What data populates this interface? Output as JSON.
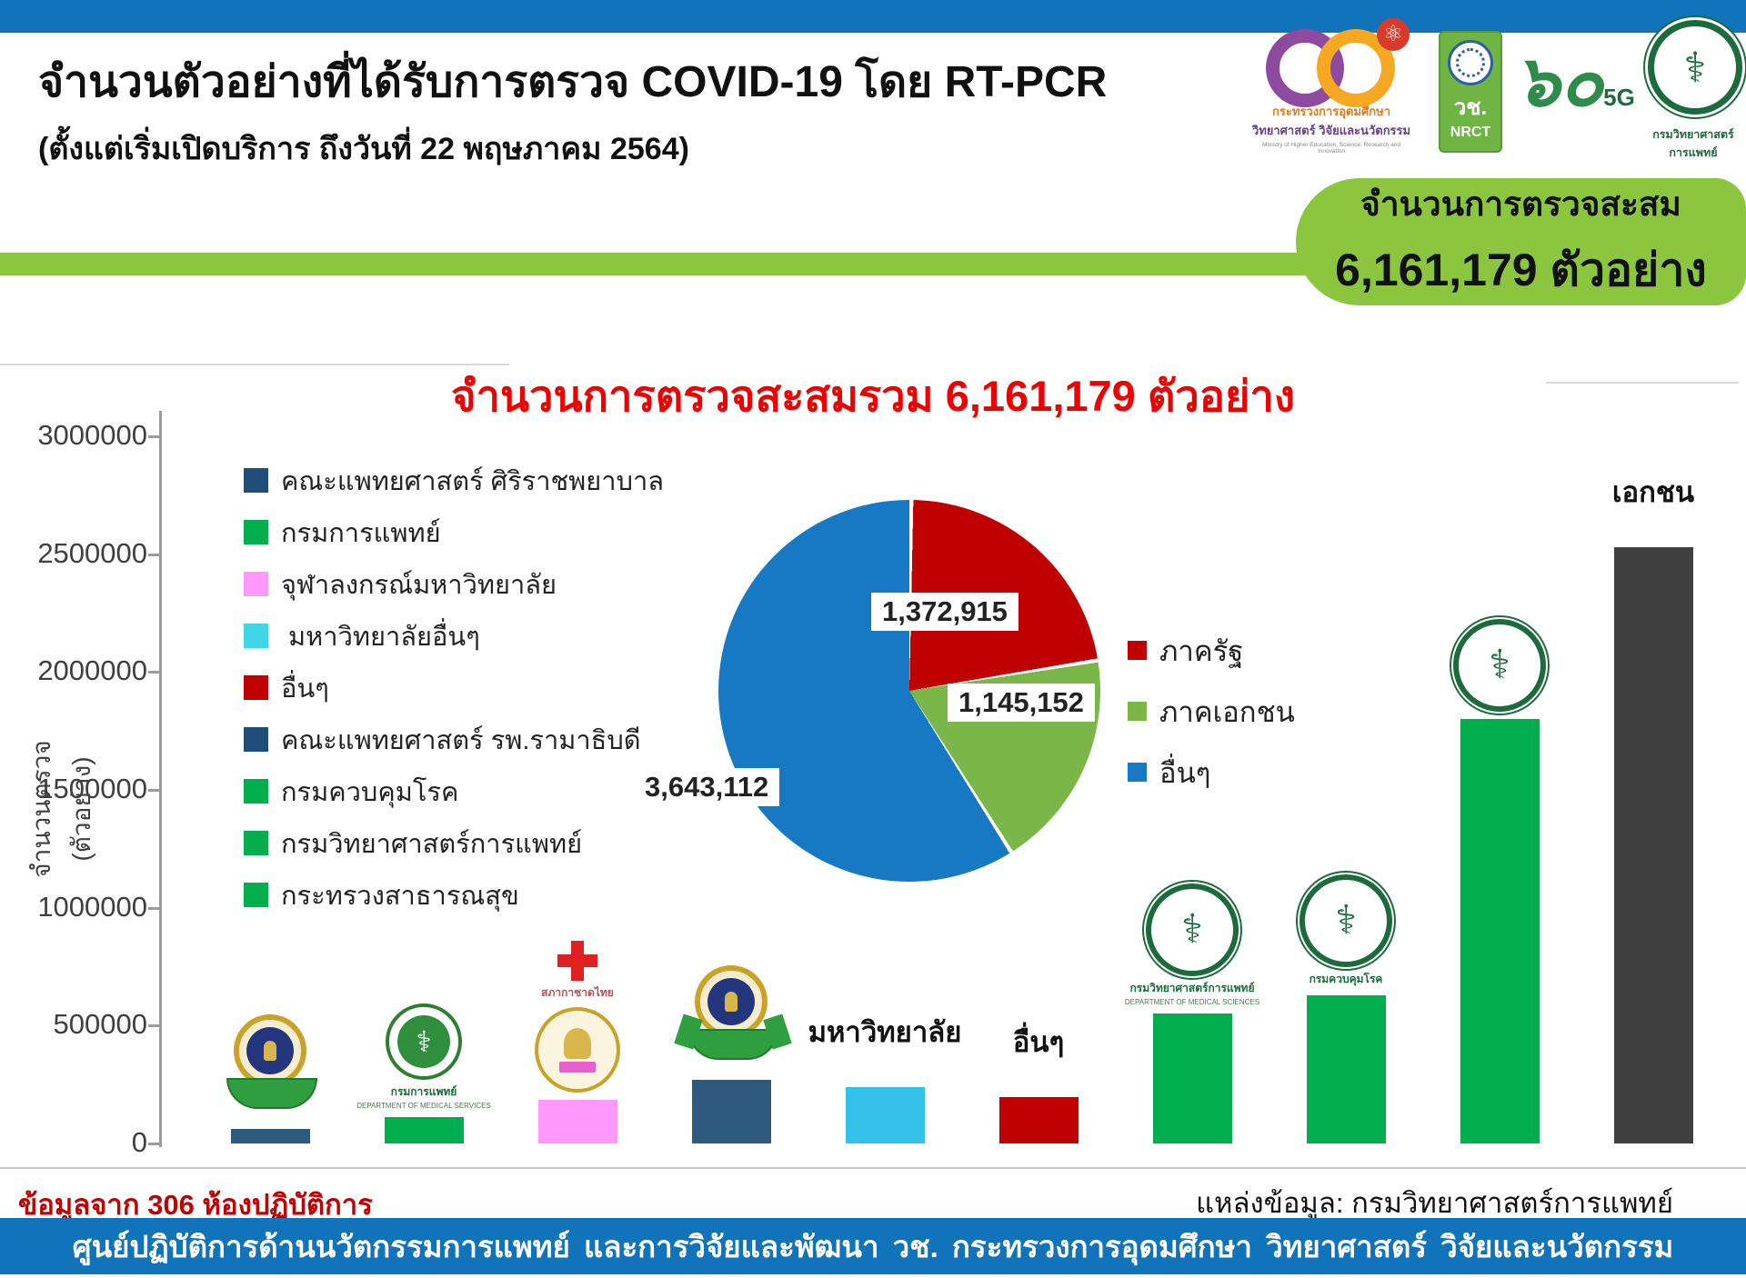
{
  "header": {
    "title": "จำนวนตัวอย่างที่ได้รับการตรวจ COVID-19 โดย RT-PCR",
    "subtitle": "(ตั้งแต่เริ่มเปิดบริการ ถึงวันที่ 22 พฤษภาคม 2564)",
    "logos": {
      "mhesi_line1": "กระทรวงการอุดมศึกษา",
      "mhesi_line2": "วิทยาศาสตร์ วิจัยและนวัตกรรม",
      "mhesi_line3": "Ministry of Higher Education, Science, Research and Innovation",
      "nrct_thai": "วช.",
      "nrct_en": "NRCT",
      "dms60_numeral": "๖๐",
      "dms60_suffix": "5G",
      "moph_caption": "กรมวิทยาศาสตร์การแพทย์"
    }
  },
  "summary_badge": {
    "label": "จำนวนการตรวจสะสม",
    "value": "6,161,179 ตัวอย่าง"
  },
  "chart_data": [
    {
      "type": "bar",
      "title": "จำนวนการตรวจสะสมรวม 6,161,179 ตัวอย่าง",
      "title_color": "#EE0000",
      "ylabel": "จำนวนตรวจ (ตัวอย่าง)",
      "ylim": [
        0,
        3000000
      ],
      "yticks": [
        0,
        500000,
        1000000,
        1500000,
        2000000,
        2500000,
        3000000
      ],
      "grid": false,
      "values_estimated_from_pixels": true,
      "legend_position": "upper-left",
      "legend": [
        {
          "label": "คณะแพทยศาสตร์ ศิริราชพยาบาล",
          "color": "#1F4E79"
        },
        {
          "label": "กรมการแพทย์",
          "color": "#00AE4E"
        },
        {
          "label": "จุฬาลงกรณ์มหาวิทยาลัย",
          "color": "#FF99FE"
        },
        {
          "label": " มหาวิทยาลัยอื่นๆ",
          "color": "#3FD6E8"
        },
        {
          "label": "อื่นๆ",
          "color": "#C00000"
        },
        {
          "label": "คณะแพทยศาสตร์ รพ.รามาธิบดี",
          "color": "#1F4E79"
        },
        {
          "label": "กรมควบคุมโรค",
          "color": "#00AE4E"
        },
        {
          "label": "กรมวิทยาศาสตร์การแพทย์",
          "color": "#00AE4E"
        },
        {
          "label": "กระทรวงสาธารณสุข",
          "color": "#00AE4E"
        }
      ],
      "bars": [
        {
          "name": "คณะแพทยศาสตร์ ศิริราชพยาบาล",
          "value": 60000,
          "color": "#2E5A7E",
          "logo": "mahidol",
          "top_text": "",
          "caption": "",
          "caption_en": ""
        },
        {
          "name": "กรมการแพทย์",
          "value": 110000,
          "color": "#00AE4E",
          "logo": "dms",
          "top_text": "",
          "caption": "กรมการแพทย์",
          "caption_en": "DEPARTMENT OF MEDICAL SERVICES"
        },
        {
          "name": "จุฬาลงกรณ์มหาวิทยาลัย",
          "value": 185000,
          "color": "#FF99FE",
          "logo": "chula",
          "top_text": "",
          "caption": "สภากาชาดไทย",
          "caption_en": ""
        },
        {
          "name": "คณะแพทยศาสตร์ รพ.รามาธิบดี",
          "value": 270000,
          "color": "#2E5A7E",
          "logo": "ramathibodi",
          "top_text": "",
          "caption": "",
          "caption_en": ""
        },
        {
          "name": "มหาวิทยาลัยอื่นๆ",
          "value": 240000,
          "color": "#33C1E8",
          "logo": "",
          "top_text": "มหาวิทยาลัย",
          "caption": "",
          "caption_en": ""
        },
        {
          "name": "อื่นๆ",
          "value": 195000,
          "color": "#C00000",
          "logo": "",
          "top_text": "อื่นๆ",
          "caption": "",
          "caption_en": ""
        },
        {
          "name": "กรมวิทยาศาสตร์การแพทย์",
          "value": 550000,
          "color": "#00AE4E",
          "logo": "moph",
          "top_text": "",
          "caption": "กรมวิทยาศาสตร์การแพทย์",
          "caption_en": "DEPARTMENT OF MEDICAL SCIENCES"
        },
        {
          "name": "กรมควบคุมโรค",
          "value": 630000,
          "color": "#00AE4E",
          "logo": "moph",
          "top_text": "",
          "caption": "กรมควบคุมโรค",
          "caption_en": ""
        },
        {
          "name": "กระทรวงสาธารณสุข",
          "value": 1800000,
          "color": "#00AE4E",
          "logo": "moph",
          "top_text": "",
          "caption": "",
          "caption_en": ""
        },
        {
          "name": "เอกชน",
          "value": 2530000,
          "color": "#3F3F3F",
          "logo": "",
          "top_text": "เอกชน",
          "caption": "",
          "caption_en": ""
        }
      ]
    },
    {
      "type": "pie",
      "total_label": "จำนวนการตรวจสะสมรวม 6,161,179 ตัวอย่าง",
      "total": 6161179,
      "labels": [
        "ภาครัฐ",
        "ภาคเอกชน",
        "อื่นๆ"
      ],
      "values": [
        1372915,
        1145152,
        3643112
      ],
      "data_labels": [
        "1,372,915",
        "1,145,152",
        "3,643,112"
      ],
      "colors": [
        "#C00000",
        "#7AB648",
        "#1779C4"
      ],
      "start_angle_deg": 0,
      "direction": "clockwise",
      "legend_position": "right"
    }
  ],
  "footer": {
    "left_text": "ข้อมูลจาก 306 ห้องปฏิบัติการ",
    "right_text": "แหล่งข้อมูล: กรมวิทยาศาสตร์การแพทย์",
    "bar_text": "ศูนย์ปฏิบัติการด้านนวัตกรรมการแพทย์ และการวิจัยและพัฒนา วช. กระทรวงการอุดมศึกษา วิทยาศาสตร์ วิจัยและนวัตกรรม"
  },
  "colors": {
    "top_bar": "#1173B9",
    "accent_green": "#8CC63F",
    "title_red": "#EE0000",
    "footer_red": "#C00000",
    "footer_bar_blue": "#1173B9"
  }
}
